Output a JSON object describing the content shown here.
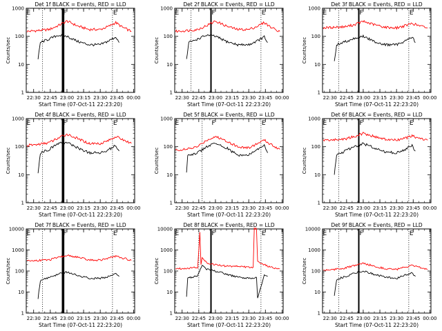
{
  "chart_data": [
    {
      "type": "line",
      "title": "Det 1f BLACK = Events, RED = LLD",
      "xlabel": "Start Time (07-Oct-11 22:23:20)",
      "ylabel": "Counts/sec",
      "ylog": true,
      "ylim": [
        1,
        1000
      ],
      "yticks": [
        "1",
        "10",
        "100",
        "1000"
      ],
      "xticks": [
        "22:30",
        "22:45",
        "23:00",
        "23:15",
        "23:30",
        "23:45",
        "00:00"
      ],
      "markers": [
        {
          "label": "E",
          "time": "22:23"
        },
        {
          "label": "F",
          "time": "22:56"
        },
        {
          "label": "E",
          "time": "23:41"
        }
      ],
      "dotted_lines": [
        "22:38",
        "23:41"
      ],
      "solid_lines": [
        "22:56",
        "22:57"
      ],
      "series": [
        {
          "color": "#ff0000",
          "x": [
            "22:24",
            "22:34",
            "22:44",
            "22:52",
            "23:00",
            "23:10",
            "23:20",
            "23:30",
            "23:38",
            "23:44",
            "23:50",
            "23:58"
          ],
          "values": [
            150,
            160,
            175,
            240,
            350,
            230,
            175,
            175,
            230,
            310,
            210,
            150
          ]
        },
        {
          "color": "#000000",
          "x": [
            "22:34",
            "22:36",
            "22:44",
            "22:52",
            "23:00",
            "23:10",
            "23:20",
            "23:30",
            "23:38",
            "23:44",
            "23:47"
          ],
          "values": [
            15,
            60,
            80,
            110,
            100,
            65,
            50,
            50,
            70,
            95,
            60
          ]
        }
      ]
    },
    {
      "type": "line",
      "title": "Det 2f BLACK = Events, RED = LLD",
      "xlabel": "Start Time (07-Oct-11 22:23:20)",
      "ylabel": "Counts/sec",
      "ylog": true,
      "ylim": [
        1,
        1000
      ],
      "yticks": [
        "1",
        "10",
        "100",
        "1000"
      ],
      "xticks": [
        "22:30",
        "22:45",
        "23:00",
        "23:15",
        "23:30",
        "23:45",
        "00:00"
      ],
      "markers": [
        {
          "label": "E",
          "time": "22:23"
        },
        {
          "label": "F",
          "time": "22:56"
        },
        {
          "label": "E",
          "time": "23:41"
        }
      ],
      "dotted_lines": [
        "22:38",
        "23:41"
      ],
      "solid_lines": [
        "22:56"
      ],
      "series": [
        {
          "color": "#ff0000",
          "x": [
            "22:24",
            "22:34",
            "22:44",
            "22:52",
            "23:00",
            "23:10",
            "23:20",
            "23:30",
            "23:38",
            "23:44",
            "23:50",
            "23:58"
          ],
          "values": [
            150,
            160,
            175,
            240,
            350,
            230,
            175,
            175,
            230,
            310,
            210,
            150
          ]
        },
        {
          "color": "#000000",
          "x": [
            "22:34",
            "22:36",
            "22:44",
            "22:52",
            "23:00",
            "23:10",
            "23:20",
            "23:30",
            "23:38",
            "23:44",
            "23:47"
          ],
          "values": [
            15,
            60,
            80,
            110,
            100,
            65,
            50,
            50,
            70,
            95,
            60
          ]
        }
      ]
    },
    {
      "type": "line",
      "title": "Det 3f BLACK = Events, RED = LLD",
      "xlabel": "Start Time (07-Oct-11 22:23:20)",
      "ylabel": "Counts/sec",
      "ylog": true,
      "ylim": [
        1,
        1000
      ],
      "yticks": [
        "1",
        "10",
        "100",
        "1000"
      ],
      "xticks": [
        "22:30",
        "22:45",
        "23:00",
        "23:15",
        "23:30",
        "23:45",
        "00:00"
      ],
      "markers": [
        {
          "label": "E",
          "time": "22:23"
        },
        {
          "label": "F",
          "time": "22:56"
        },
        {
          "label": "E",
          "time": "23:41"
        }
      ],
      "dotted_lines": [
        "22:38",
        "23:41"
      ],
      "solid_lines": [
        "22:56"
      ],
      "series": [
        {
          "color": "#ff0000",
          "x": [
            "22:24",
            "22:34",
            "22:44",
            "22:52",
            "23:00",
            "23:10",
            "23:20",
            "23:30",
            "23:38",
            "23:44",
            "23:50",
            "23:58"
          ],
          "values": [
            200,
            210,
            220,
            260,
            340,
            260,
            210,
            200,
            240,
            290,
            240,
            200
          ]
        },
        {
          "color": "#000000",
          "x": [
            "22:34",
            "22:36",
            "22:44",
            "22:52",
            "23:00",
            "23:10",
            "23:20",
            "23:30",
            "23:38",
            "23:44",
            "23:47"
          ],
          "values": [
            12,
            50,
            65,
            85,
            100,
            65,
            50,
            50,
            70,
            95,
            60
          ]
        }
      ]
    },
    {
      "type": "line",
      "title": "Det 4f BLACK = Events, RED = LLD",
      "xlabel": "Start Time (07-Oct-11 22:23:20)",
      "ylabel": "Counts/sec",
      "ylog": true,
      "ylim": [
        1,
        1000
      ],
      "yticks": [
        "1",
        "10",
        "100",
        "1000"
      ],
      "xticks": [
        "22:30",
        "22:45",
        "23:00",
        "23:15",
        "23:30",
        "23:45",
        "00:00"
      ],
      "markers": [
        {
          "label": "E",
          "time": "22:23"
        },
        {
          "label": "F",
          "time": "22:56"
        },
        {
          "label": "E",
          "time": "23:41"
        }
      ],
      "dotted_lines": [
        "22:38",
        "23:41"
      ],
      "solid_lines": [
        "22:56",
        "22:57"
      ],
      "series": [
        {
          "color": "#ff0000",
          "x": [
            "22:24",
            "22:34",
            "22:44",
            "22:52",
            "23:00",
            "23:10",
            "23:20",
            "23:30",
            "23:38",
            "23:44",
            "23:50",
            "23:58"
          ],
          "values": [
            110,
            120,
            140,
            200,
            280,
            190,
            130,
            130,
            170,
            230,
            180,
            130
          ]
        },
        {
          "color": "#000000",
          "x": [
            "22:34",
            "22:36",
            "22:44",
            "22:52",
            "23:00",
            "23:10",
            "23:20",
            "23:30",
            "23:38",
            "23:44",
            "23:47"
          ],
          "values": [
            12,
            60,
            80,
            130,
            140,
            90,
            60,
            60,
            80,
            110,
            70
          ]
        }
      ]
    },
    {
      "type": "line",
      "title": "Det 5f BLACK = Events, RED = LLD",
      "xlabel": "Start Time (07-Oct-11 22:23:20)",
      "ylabel": "Counts/sec",
      "ylog": true,
      "ylim": [
        1,
        1000
      ],
      "yticks": [
        "1",
        "10",
        "100",
        "1000"
      ],
      "xticks": [
        "22:30",
        "22:45",
        "23:00",
        "23:15",
        "23:30",
        "23:45",
        "00:00"
      ],
      "markers": [
        {
          "label": "E",
          "time": "22:23"
        },
        {
          "label": "F",
          "time": "22:56"
        },
        {
          "label": "E",
          "time": "23:41"
        }
      ],
      "dotted_lines": [
        "22:48",
        "23:41"
      ],
      "solid_lines": [],
      "series": [
        {
          "color": "#ff0000",
          "x": [
            "22:24",
            "22:34",
            "22:44",
            "22:52",
            "23:00",
            "23:10",
            "23:20",
            "23:30",
            "23:38",
            "23:44",
            "23:50",
            "23:58"
          ],
          "values": [
            75,
            80,
            100,
            170,
            230,
            160,
            100,
            90,
            130,
            170,
            120,
            80
          ]
        },
        {
          "color": "#000000",
          "x": [
            "22:34",
            "22:35",
            "22:44",
            "22:52",
            "23:00",
            "23:10",
            "23:20",
            "23:30",
            "23:38",
            "23:44",
            "23:47"
          ],
          "values": [
            12,
            50,
            60,
            100,
            130,
            90,
            50,
            50,
            80,
            110,
            60
          ]
        }
      ]
    },
    {
      "type": "line",
      "title": "Det 6f BLACK = Events, RED = LLD",
      "xlabel": "Start Time (07-Oct-11 22:23:20)",
      "ylabel": "Counts/sec",
      "ylog": true,
      "ylim": [
        1,
        1000
      ],
      "yticks": [
        "1",
        "10",
        "100",
        "1000"
      ],
      "xticks": [
        "22:30",
        "22:45",
        "23:00",
        "23:15",
        "23:30",
        "23:45",
        "00:00"
      ],
      "markers": [
        {
          "label": "E",
          "time": "22:23"
        },
        {
          "label": "F",
          "time": "22:56"
        },
        {
          "label": "E",
          "time": "23:41"
        }
      ],
      "dotted_lines": [
        "22:38",
        "23:41"
      ],
      "solid_lines": [
        "22:56"
      ],
      "series": [
        {
          "color": "#ff0000",
          "x": [
            "22:24",
            "22:34",
            "22:44",
            "22:52",
            "23:00",
            "23:10",
            "23:20",
            "23:30",
            "23:38",
            "23:44",
            "23:50",
            "23:58"
          ],
          "values": [
            170,
            175,
            190,
            230,
            300,
            230,
            180,
            170,
            200,
            240,
            200,
            170
          ]
        },
        {
          "color": "#000000",
          "x": [
            "22:34",
            "22:36",
            "22:44",
            "22:52",
            "23:00",
            "23:10",
            "23:20",
            "23:30",
            "23:38",
            "23:44",
            "23:47"
          ],
          "values": [
            10,
            50,
            70,
            100,
            130,
            90,
            65,
            60,
            80,
            110,
            70
          ]
        }
      ]
    },
    {
      "type": "line",
      "title": "Det 7f BLACK = Events, RED = LLD",
      "xlabel": "Start Time (07-Oct-11 22:23:20)",
      "ylabel": "Counts/sec",
      "ylog": true,
      "ylim": [
        1,
        10000
      ],
      "yticks": [
        "1",
        "10",
        "100",
        "1000",
        "10000"
      ],
      "xticks": [
        "22:30",
        "22:45",
        "23:00",
        "23:15",
        "23:30",
        "23:45",
        "00:00"
      ],
      "markers": [
        {
          "label": "E",
          "time": "22:23"
        },
        {
          "label": "F",
          "time": "22:56"
        },
        {
          "label": "E",
          "time": "23:41"
        }
      ],
      "dotted_lines": [
        "22:38",
        "23:41"
      ],
      "solid_lines": [
        "22:56",
        "22:57"
      ],
      "series": [
        {
          "color": "#ff0000",
          "x": [
            "22:24",
            "22:34",
            "22:44",
            "22:52",
            "23:00",
            "23:10",
            "23:20",
            "23:30",
            "23:38",
            "23:44",
            "23:50",
            "23:58"
          ],
          "values": [
            300,
            320,
            340,
            430,
            550,
            450,
            330,
            330,
            420,
            500,
            420,
            320
          ]
        },
        {
          "color": "#000000",
          "x": [
            "22:34",
            "22:36",
            "22:44",
            "22:52",
            "23:00",
            "23:10",
            "23:20",
            "23:30",
            "23:38",
            "23:44",
            "23:47"
          ],
          "values": [
            5,
            35,
            50,
            70,
            90,
            60,
            45,
            45,
            55,
            70,
            55
          ]
        }
      ]
    },
    {
      "type": "line",
      "title": "Det 8f BLACK = Events, RED = LLD",
      "xlabel": "Start Time (07-Oct-11 22:23:20)",
      "ylabel": "Counts/sec",
      "ylog": true,
      "ylim": [
        1,
        10000
      ],
      "yticks": [
        "1",
        "10",
        "100",
        "1000",
        "10000"
      ],
      "xticks": [
        "22:30",
        "22:45",
        "23:00",
        "23:15",
        "23:30",
        "23:45",
        "00:00"
      ],
      "markers": [
        {
          "label": "E",
          "time": "22:23"
        },
        {
          "label": "F",
          "time": "22:56"
        },
        {
          "label": "E",
          "time": "23:41"
        }
      ],
      "dotted_lines": [
        "22:45",
        "23:41"
      ],
      "solid_lines": [
        "22:56"
      ],
      "series": [
        {
          "color": "#ff0000",
          "x": [
            "22:24",
            "22:34",
            "22:44",
            "22:46",
            "22:47",
            "22:48",
            "22:52",
            "23:00",
            "23:10",
            "23:20",
            "23:30",
            "23:34",
            "23:35",
            "23:37",
            "23:38",
            "23:44",
            "23:50",
            "23:58"
          ],
          "values": [
            130,
            135,
            150,
            7000,
            200,
            400,
            250,
            200,
            170,
            170,
            150,
            150,
            10000,
            10000,
            300,
            200,
            150,
            130
          ]
        },
        {
          "color": "#000000",
          "x": [
            "22:34",
            "22:35",
            "22:44",
            "22:48",
            "22:52",
            "23:00",
            "23:10",
            "23:20",
            "23:30",
            "23:37",
            "23:38",
            "23:44",
            "23:47"
          ],
          "values": [
            6,
            45,
            60,
            200,
            120,
            100,
            70,
            50,
            45,
            50,
            5,
            65,
            55
          ]
        }
      ]
    },
    {
      "type": "line",
      "title": "Det 9f BLACK = Events, RED = LLD",
      "xlabel": "Start Time (07-Oct-11 22:23:20)",
      "ylabel": "Counts/sec",
      "ylog": true,
      "ylim": [
        1,
        10000
      ],
      "yticks": [
        "1",
        "10",
        "100",
        "1000",
        "10000"
      ],
      "xticks": [
        "22:30",
        "22:45",
        "23:00",
        "23:15",
        "23:30",
        "23:45",
        "00:00"
      ],
      "markers": [
        {
          "label": "E",
          "time": "22:23"
        },
        {
          "label": "F",
          "time": "22:56"
        },
        {
          "label": "E",
          "time": "23:41"
        }
      ],
      "dotted_lines": [
        "22:38",
        "23:41"
      ],
      "solid_lines": [
        "22:56"
      ],
      "series": [
        {
          "color": "#ff0000",
          "x": [
            "22:24",
            "22:34",
            "22:44",
            "22:52",
            "23:00",
            "23:10",
            "23:20",
            "23:30",
            "23:38",
            "23:44",
            "23:50",
            "23:58"
          ],
          "values": [
            110,
            120,
            140,
            180,
            230,
            170,
            130,
            120,
            150,
            180,
            150,
            120
          ]
        },
        {
          "color": "#000000",
          "x": [
            "22:34",
            "22:36",
            "22:44",
            "22:52",
            "23:00",
            "23:10",
            "23:20",
            "23:30",
            "23:38",
            "23:44",
            "23:47"
          ],
          "values": [
            7,
            40,
            55,
            80,
            100,
            70,
            50,
            45,
            65,
            80,
            55
          ]
        }
      ]
    }
  ]
}
